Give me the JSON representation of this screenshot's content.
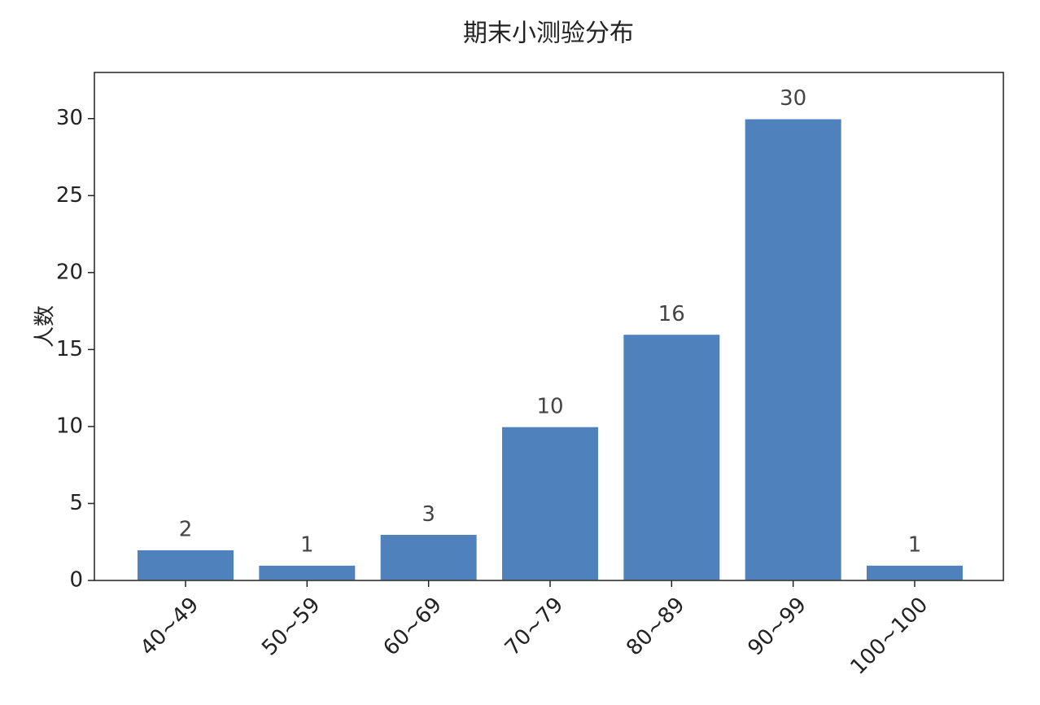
{
  "chart_data": {
    "type": "bar",
    "title": "期末小测验分布",
    "y_label": "人数",
    "categories": [
      "40~49",
      "50~59",
      "60~69",
      "70~79",
      "80~89",
      "90~99",
      "100~100"
    ],
    "values": [
      2,
      1,
      3,
      10,
      16,
      30,
      1
    ],
    "color": "#4f81bd",
    "ylim": [
      0,
      33
    ],
    "yticks": [
      0,
      5,
      10,
      15,
      20,
      25,
      30
    ],
    "grid": false
  }
}
